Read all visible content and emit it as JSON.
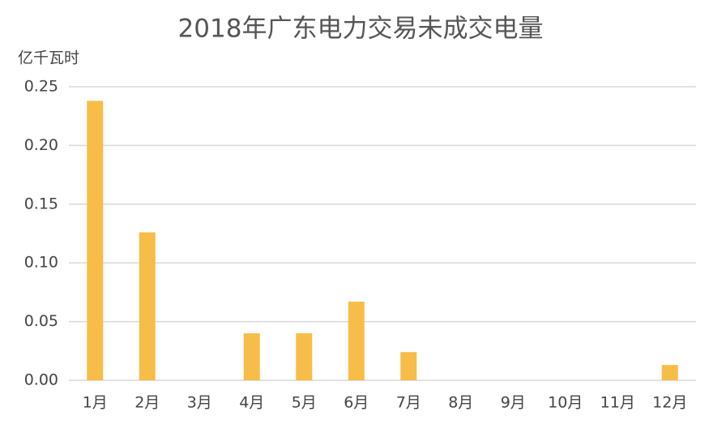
{
  "chart_data": {
    "type": "bar",
    "title": "2018年广东电力交易未成交电量",
    "y_label": "亿千瓦时",
    "categories": [
      "1月",
      "2月",
      "3月",
      "4月",
      "5月",
      "6月",
      "7月",
      "8月",
      "9月",
      "10月",
      "11月",
      "12月"
    ],
    "values": [
      0.238,
      0.126,
      0,
      0.04,
      0.04,
      0.067,
      0.024,
      0,
      0,
      0,
      0,
      0.013
    ],
    "color": "#f7bd49",
    "ylim": [
      0,
      0.25
    ],
    "yticks": [
      {
        "value": 0,
        "label": "0.00"
      },
      0.05,
      {
        "value": 0.1,
        "label": "0.10"
      },
      0.15,
      {
        "value": 0.2,
        "label": "0.20"
      },
      0.25
    ],
    "grid": true
  }
}
